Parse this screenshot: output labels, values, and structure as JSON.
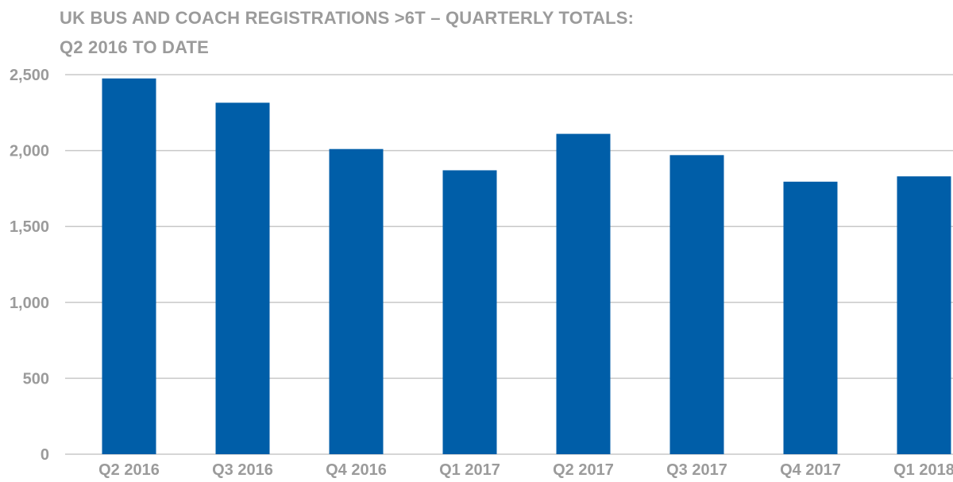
{
  "chart_data": {
    "type": "bar",
    "title": "UK BUS AND COACH REGISTRATIONS >6T – QUARTERLY TOTALS:",
    "subtitle": "Q2 2016 TO DATE",
    "categories": [
      "Q2 2016",
      "Q3 2016",
      "Q4 2016",
      "Q1 2017",
      "Q2 2017",
      "Q3 2017",
      "Q4 2017",
      "Q1 2018"
    ],
    "values": [
      2475,
      2315,
      2010,
      1870,
      2110,
      1970,
      1795,
      1830
    ],
    "ylim": [
      0,
      2500
    ],
    "yticks": [
      0,
      500,
      1000,
      1500,
      2000,
      2500
    ],
    "ytick_labels": [
      "0",
      "500",
      "1,000",
      "1,500",
      "2,000",
      "2,500"
    ],
    "grid": true,
    "bar_color": "#005ea8",
    "grid_color": "#c8c8c8",
    "text_color": "#9b9b9b"
  }
}
